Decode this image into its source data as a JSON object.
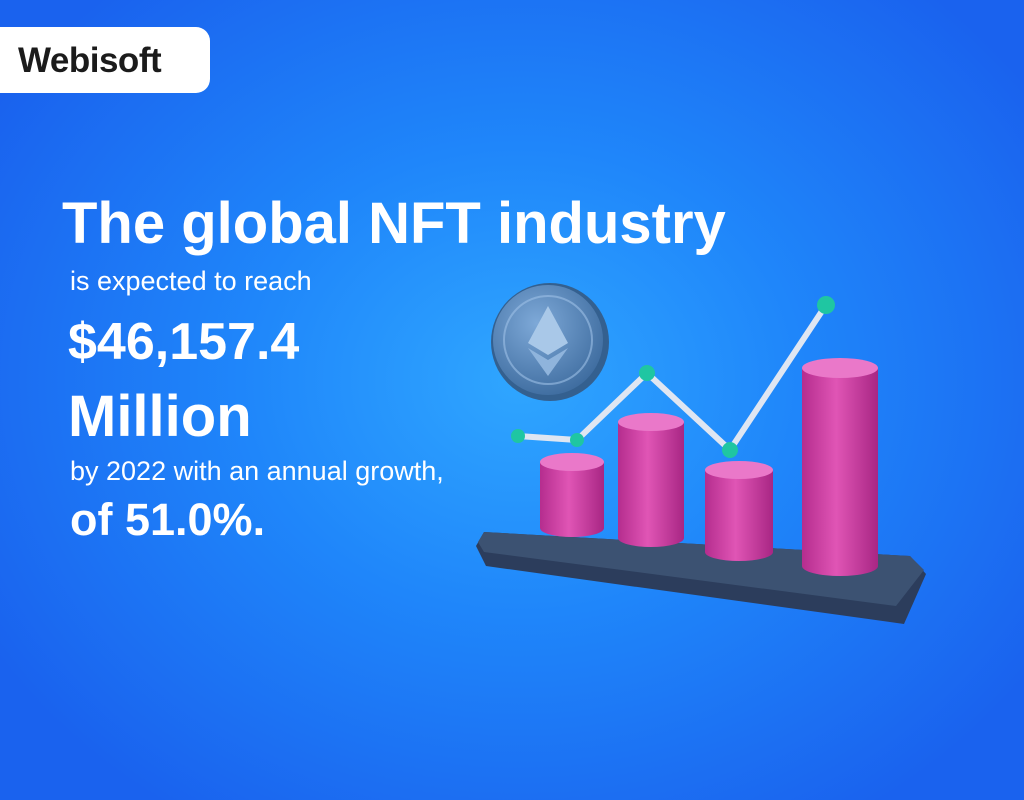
{
  "logo": {
    "text": "Webisoft"
  },
  "headline": {
    "line1": "The global NFT industry",
    "line2": "is expected to reach",
    "amount": "$46,157.4",
    "unit": "Million",
    "line3": "by 2022 with an annual growth,",
    "line4": "of 51.0%."
  }
}
